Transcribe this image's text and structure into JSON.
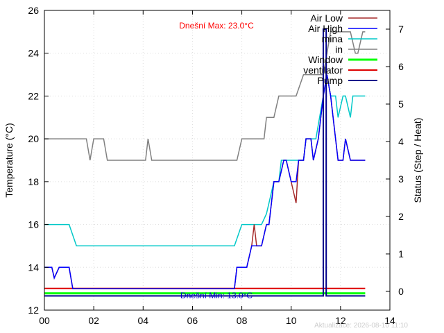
{
  "chart_data": {
    "type": "line",
    "ylabel": "Temperature (°C)",
    "y2label": "Status (Step / Heat)",
    "xlim": [
      0,
      14
    ],
    "ylim": [
      12,
      26
    ],
    "y2lim": [
      -0.5,
      7.5
    ],
    "x_ticks": [
      "00",
      "02",
      "04",
      "06",
      "08",
      "10",
      "12",
      "14"
    ],
    "y_ticks": [
      "12",
      "14",
      "16",
      "18",
      "20",
      "22",
      "24",
      "26"
    ],
    "y2_ticks": [
      "0",
      "1",
      "2",
      "3",
      "4",
      "5",
      "6",
      "7"
    ],
    "grid": true,
    "legend_position": "top-right",
    "annotations": {
      "max": "Dnešní Max: 23.0°C",
      "min": "Dnešní Min: 13.0°C",
      "updated": "Aktualizace: 2026-08-10 11:10"
    },
    "colors": {
      "air_low": "#a52a2a",
      "air_high": "#0000ff",
      "mina": "#00c8c8",
      "in": "#808080",
      "window": "#00ff00",
      "ventilator": "#dd0000",
      "pump": "#00008b"
    },
    "series": [
      {
        "name": "Air Low",
        "axis": "y",
        "x": [
          0,
          0.3,
          0.4,
          0.6,
          1.0,
          1.15,
          2.0,
          4.0,
          6.0,
          7.7,
          7.8,
          8.2,
          8.4,
          8.5,
          8.6,
          8.8,
          9.0,
          9.1,
          9.3,
          9.5,
          9.6,
          9.7,
          9.8,
          10.0,
          10.2,
          10.3,
          10.5,
          10.6,
          10.8,
          10.9,
          11.1,
          11.3,
          11.45,
          11.6,
          11.8,
          11.9,
          12.1,
          12.2,
          12.4,
          12.5,
          13.0
        ],
        "y": [
          14,
          14,
          13.5,
          14,
          14,
          13,
          13,
          13,
          13,
          13,
          14,
          14,
          15,
          16,
          15,
          15,
          16,
          16,
          18,
          18,
          18.5,
          19,
          19,
          18,
          17,
          19,
          19,
          20,
          20,
          19,
          20,
          22,
          23,
          22,
          20,
          19,
          19,
          20,
          19,
          19,
          19
        ]
      },
      {
        "name": "Air High",
        "axis": "y",
        "x": [
          0,
          0.3,
          0.4,
          0.6,
          1.0,
          1.15,
          2.0,
          4.0,
          6.0,
          7.7,
          7.8,
          8.2,
          8.4,
          8.5,
          8.6,
          8.8,
          9.0,
          9.1,
          9.3,
          9.5,
          9.6,
          9.7,
          9.8,
          10.0,
          10.2,
          10.3,
          10.5,
          10.6,
          10.8,
          10.9,
          11.1,
          11.3,
          11.45,
          11.6,
          11.8,
          11.9,
          12.1,
          12.2,
          12.4,
          12.5,
          13.0
        ],
        "y": [
          14,
          14,
          13.5,
          14,
          14,
          13,
          13,
          13,
          13,
          13,
          14,
          14,
          15,
          15,
          15,
          15,
          16,
          16,
          18,
          18,
          18.5,
          19,
          19,
          18,
          18,
          19,
          19,
          20,
          20,
          19,
          20,
          22,
          23,
          22,
          20,
          19,
          19,
          20,
          19,
          19,
          19
        ]
      },
      {
        "name": "mina",
        "axis": "y",
        "x": [
          0,
          1.0,
          1.3,
          7.7,
          8.0,
          8.8,
          9.0,
          9.1,
          9.3,
          9.5,
          9.6,
          10.0,
          10.5,
          10.6,
          11.0,
          11.3,
          11.45,
          11.6,
          11.8,
          11.9,
          12.1,
          12.2,
          12.4,
          12.5,
          13.0
        ],
        "y": [
          16,
          16,
          15,
          15,
          16,
          16,
          16.5,
          17,
          18,
          18,
          19,
          19,
          19,
          20,
          20,
          22,
          23,
          22,
          22,
          21,
          22,
          22,
          21,
          22,
          22
        ]
      },
      {
        "name": "in",
        "axis": "y",
        "x": [
          0,
          1.7,
          1.85,
          2.0,
          2.4,
          2.55,
          4.1,
          4.2,
          4.35,
          7.8,
          8.0,
          8.9,
          9.0,
          9.3,
          9.5,
          10.2,
          10.5,
          10.9,
          11.3,
          11.45,
          11.6,
          12.4,
          12.6,
          12.7,
          12.9,
          13.0
        ],
        "y": [
          20,
          20,
          19,
          20,
          20,
          19,
          19,
          20,
          19,
          19,
          20,
          20,
          21,
          21,
          22,
          22,
          23,
          23,
          23,
          24,
          25,
          25,
          24,
          24,
          25,
          25
        ]
      },
      {
        "name": "Window",
        "axis": "y2",
        "x": [
          0,
          13.0
        ],
        "y": [
          -0.05,
          -0.05
        ]
      },
      {
        "name": "ventilator",
        "axis": "y2",
        "x": [
          0,
          13.0
        ],
        "y": [
          0.08,
          0.08
        ]
      },
      {
        "name": "Pump",
        "axis": "y2",
        "x": [
          0,
          11.3,
          11.3,
          11.42,
          11.42,
          11.5,
          11.5,
          13.0
        ],
        "y": [
          -0.12,
          -0.12,
          7.0,
          7.0,
          -0.12,
          -0.12,
          -0.12,
          -0.12
        ]
      }
    ]
  }
}
